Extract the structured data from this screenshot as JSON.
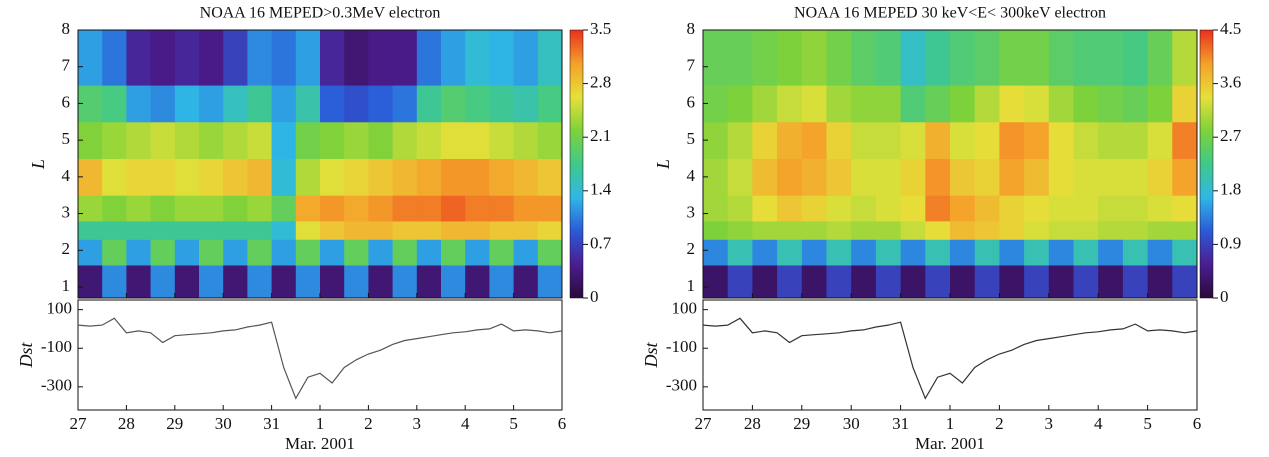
{
  "chart_data": [
    {
      "type": "heatmap",
      "title": "NOAA 16 MEPED>0.3MeV electron",
      "ylabel": "L",
      "xlabel": "Mar. 2001",
      "colormap": [
        "#2a0a3a",
        "#4b1d8f",
        "#2b5ad8",
        "#2fb7e6",
        "#40c98a",
        "#7ed23a",
        "#e6e03a",
        "#f5a02a",
        "#e8321e"
      ],
      "zlim": [
        0,
        3.5
      ],
      "colorbar_ticks": [
        0,
        0.7,
        1.4,
        2.1,
        2.8,
        3.5
      ],
      "xlim": [
        0,
        10
      ],
      "xticks": [
        {
          "value": 0,
          "label": "27"
        },
        {
          "value": 1,
          "label": "28"
        },
        {
          "value": 2,
          "label": "29"
        },
        {
          "value": 3,
          "label": "30"
        },
        {
          "value": 4,
          "label": "31"
        },
        {
          "value": 5,
          "label": "1"
        },
        {
          "value": 6,
          "label": "2"
        },
        {
          "value": 7,
          "label": "3"
        },
        {
          "value": 8,
          "label": "4"
        },
        {
          "value": 9,
          "label": "5"
        },
        {
          "value": 10,
          "label": "6"
        }
      ],
      "ylim": [
        0.7,
        8
      ],
      "yticks": [
        1,
        2,
        3,
        4,
        5,
        6,
        7,
        8
      ],
      "x_edges": [
        0,
        0.5,
        1,
        1.5,
        2,
        2.5,
        3,
        3.5,
        4,
        4.5,
        5,
        5.5,
        6,
        6.5,
        7,
        7.5,
        8,
        8.5,
        9,
        9.5,
        10
      ],
      "y_edges": [
        0.7,
        1.6,
        2.3,
        2.8,
        3.5,
        4.5,
        5.5,
        6.5,
        8
      ],
      "z": [
        [
          0.3,
          1.1,
          0.3,
          1.1,
          0.3,
          1.1,
          0.3,
          1.1,
          0.3,
          1.1,
          0.3,
          1.1,
          0.3,
          1.1,
          0.3,
          1.1,
          0.3,
          1.1,
          0.3,
          1.1
        ],
        [
          1.2,
          2.0,
          1.2,
          2.0,
          1.2,
          2.0,
          1.2,
          2.0,
          1.2,
          2.0,
          1.2,
          2.0,
          1.2,
          2.0,
          1.2,
          2.0,
          1.2,
          2.0,
          1.2,
          2.0
        ],
        [
          1.7,
          1.7,
          1.7,
          1.7,
          1.7,
          1.7,
          1.7,
          1.7,
          1.4,
          2.6,
          2.8,
          2.9,
          2.9,
          2.8,
          2.8,
          2.9,
          2.9,
          2.8,
          2.8,
          2.7
        ],
        [
          2.3,
          2.2,
          2.3,
          2.2,
          2.3,
          2.3,
          2.2,
          2.3,
          2.0,
          3.0,
          3.1,
          3.0,
          3.1,
          3.2,
          3.2,
          3.3,
          3.2,
          3.2,
          3.1,
          3.1
        ],
        [
          2.9,
          2.6,
          2.7,
          2.7,
          2.6,
          2.7,
          2.8,
          2.9,
          1.4,
          2.4,
          2.6,
          2.7,
          2.8,
          2.9,
          3.0,
          3.1,
          3.1,
          3.0,
          2.9,
          2.8
        ],
        [
          2.2,
          2.3,
          2.4,
          2.5,
          2.4,
          2.3,
          2.4,
          2.5,
          1.3,
          2.1,
          2.2,
          2.3,
          2.2,
          2.4,
          2.5,
          2.6,
          2.6,
          2.5,
          2.4,
          2.3
        ],
        [
          1.9,
          1.8,
          1.2,
          1.1,
          1.3,
          1.2,
          1.5,
          1.7,
          1.2,
          1.6,
          0.9,
          0.8,
          0.9,
          1.0,
          1.7,
          1.9,
          1.8,
          1.7,
          1.6,
          1.8
        ],
        [
          1.2,
          1.0,
          0.5,
          0.4,
          0.5,
          0.4,
          0.7,
          1.1,
          1.0,
          1.2,
          0.5,
          0.3,
          0.4,
          0.4,
          1.0,
          1.2,
          1.4,
          1.3,
          1.2,
          1.5
        ]
      ],
      "dst": {
        "ylabel": "Dst",
        "color": "#555555",
        "ylim": [
          -420,
          150
        ],
        "yticks": [
          100,
          -100,
          -300
        ],
        "x": [
          0,
          0.25,
          0.5,
          0.75,
          1,
          1.25,
          1.5,
          1.75,
          2,
          2.25,
          2.5,
          2.75,
          3,
          3.25,
          3.5,
          3.75,
          4,
          4.25,
          4.5,
          4.75,
          5,
          5.25,
          5.5,
          5.75,
          6,
          6.25,
          6.5,
          6.75,
          7,
          7.25,
          7.5,
          7.75,
          8,
          8.25,
          8.5,
          8.75,
          9,
          9.25,
          9.5,
          9.75,
          10
        ],
        "values": [
          20,
          15,
          20,
          55,
          -20,
          -10,
          -20,
          -70,
          -35,
          -30,
          -25,
          -20,
          -10,
          -5,
          10,
          20,
          35,
          -200,
          -360,
          -250,
          -230,
          -280,
          -200,
          -160,
          -130,
          -110,
          -80,
          -60,
          -50,
          -40,
          -30,
          -20,
          -15,
          -5,
          0,
          25,
          -10,
          -5,
          -10,
          -20,
          -10
        ]
      }
    },
    {
      "type": "heatmap",
      "title": "NOAA 16 MEPED 30 keV<E< 300keV  electron",
      "ylabel": "L",
      "xlabel": "Mar. 2001",
      "colormap": [
        "#2a0a3a",
        "#4b1d8f",
        "#2b5ad8",
        "#2fb7e6",
        "#40c98a",
        "#7ed23a",
        "#e6e03a",
        "#f5a02a",
        "#e8321e"
      ],
      "zlim": [
        0,
        4.5
      ],
      "colorbar_ticks": [
        0,
        0.9,
        1.8,
        2.7,
        3.6,
        4.5
      ],
      "xlim": [
        0,
        10
      ],
      "xticks": [
        {
          "value": 0,
          "label": "27"
        },
        {
          "value": 1,
          "label": "28"
        },
        {
          "value": 2,
          "label": "29"
        },
        {
          "value": 3,
          "label": "30"
        },
        {
          "value": 4,
          "label": "31"
        },
        {
          "value": 5,
          "label": "1"
        },
        {
          "value": 6,
          "label": "2"
        },
        {
          "value": 7,
          "label": "3"
        },
        {
          "value": 8,
          "label": "4"
        },
        {
          "value": 9,
          "label": "5"
        },
        {
          "value": 10,
          "label": "6"
        }
      ],
      "ylim": [
        0.7,
        8
      ],
      "yticks": [
        1,
        2,
        3,
        4,
        5,
        6,
        7,
        8
      ],
      "x_edges": [
        0,
        0.5,
        1,
        1.5,
        2,
        2.5,
        3,
        3.5,
        4,
        4.5,
        5,
        5.5,
        6,
        6.5,
        7,
        7.5,
        8,
        8.5,
        9,
        9.5,
        10
      ],
      "y_edges": [
        0.7,
        1.6,
        2.3,
        2.8,
        3.5,
        4.5,
        5.5,
        6.5,
        8
      ],
      "z": [
        [
          0.3,
          0.9,
          0.3,
          0.9,
          0.3,
          0.9,
          0.3,
          0.9,
          0.3,
          0.9,
          0.3,
          0.9,
          0.3,
          0.9,
          0.3,
          0.9,
          0.3,
          0.9,
          0.3,
          0.9
        ],
        [
          1.4,
          2.0,
          1.4,
          2.0,
          1.4,
          2.0,
          1.4,
          2.0,
          1.4,
          2.0,
          1.4,
          2.0,
          1.4,
          2.0,
          1.4,
          2.0,
          1.4,
          2.0,
          1.4,
          2.0
        ],
        [
          2.8,
          2.9,
          3.0,
          3.0,
          3.0,
          3.1,
          3.0,
          3.0,
          3.2,
          3.4,
          3.7,
          3.6,
          3.5,
          3.3,
          3.2,
          3.2,
          3.1,
          3.1,
          3.0,
          3.0
        ],
        [
          3.0,
          3.1,
          3.4,
          3.6,
          3.5,
          3.3,
          3.2,
          3.3,
          3.4,
          4.1,
          3.9,
          3.7,
          3.5,
          3.4,
          3.3,
          3.3,
          3.2,
          3.2,
          3.3,
          3.4
        ],
        [
          3.0,
          3.2,
          3.7,
          3.9,
          3.8,
          3.6,
          3.3,
          3.3,
          3.5,
          4.0,
          3.6,
          3.5,
          3.9,
          3.7,
          3.4,
          3.3,
          3.3,
          3.3,
          3.5,
          3.9
        ],
        [
          2.9,
          3.1,
          3.5,
          3.8,
          3.9,
          3.5,
          3.2,
          3.2,
          3.3,
          3.8,
          3.3,
          3.4,
          4.0,
          3.9,
          3.4,
          3.2,
          3.1,
          3.1,
          3.3,
          4.1
        ],
        [
          2.7,
          2.8,
          3.0,
          3.2,
          3.3,
          3.0,
          2.9,
          2.9,
          2.4,
          2.6,
          2.8,
          3.1,
          3.4,
          3.3,
          3.0,
          2.8,
          2.7,
          2.6,
          2.8,
          3.5
        ],
        [
          2.6,
          2.6,
          2.7,
          2.8,
          2.9,
          2.7,
          2.5,
          2.4,
          1.9,
          2.2,
          2.4,
          2.5,
          2.7,
          2.7,
          2.5,
          2.4,
          2.4,
          2.3,
          2.6,
          3.1
        ]
      ],
      "dst": {
        "ylabel": "Dst",
        "color": "#333333",
        "ylim": [
          -420,
          150
        ],
        "yticks": [
          100,
          -100,
          -300
        ],
        "x": [
          0,
          0.25,
          0.5,
          0.75,
          1,
          1.25,
          1.5,
          1.75,
          2,
          2.25,
          2.5,
          2.75,
          3,
          3.25,
          3.5,
          3.75,
          4,
          4.25,
          4.5,
          4.75,
          5,
          5.25,
          5.5,
          5.75,
          6,
          6.25,
          6.5,
          6.75,
          7,
          7.25,
          7.5,
          7.75,
          8,
          8.25,
          8.5,
          8.75,
          9,
          9.25,
          9.5,
          9.75,
          10
        ],
        "values": [
          20,
          15,
          20,
          55,
          -20,
          -10,
          -20,
          -70,
          -35,
          -30,
          -25,
          -20,
          -10,
          -5,
          10,
          20,
          35,
          -200,
          -360,
          -250,
          -230,
          -280,
          -200,
          -160,
          -130,
          -110,
          -80,
          -60,
          -50,
          -40,
          -30,
          -20,
          -15,
          -5,
          0,
          25,
          -10,
          -5,
          -10,
          -20,
          -10
        ]
      }
    }
  ]
}
